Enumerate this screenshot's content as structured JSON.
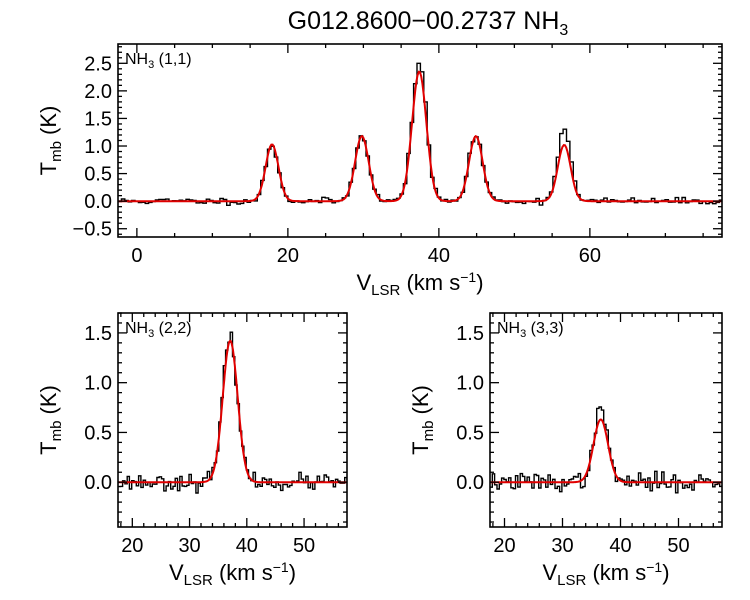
{
  "figure_title": {
    "main": "G012.8600−00.2737 NH",
    "sub": "3"
  },
  "colors": {
    "observed": "#000000",
    "fit": "#e00000"
  },
  "chart_data": [
    {
      "id": "top",
      "type": "line",
      "label": {
        "main": "NH",
        "sub": "3",
        "tail": " (1,1)"
      },
      "ylabel": {
        "main": "T",
        "sub": "mb",
        "tail": " (K)"
      },
      "xlabel": {
        "main": "V",
        "sub": "LSR",
        "tail": " (km s",
        "sup": "−1",
        "end": ")"
      },
      "xlim": [
        -2.5,
        77.5
      ],
      "ylim": [
        -0.65,
        2.85
      ],
      "xticks": [
        0,
        20,
        40,
        60
      ],
      "xtick_labels": [
        "0",
        "20",
        "40",
        "60"
      ],
      "yticks": [
        -0.5,
        0,
        0.5,
        1,
        1.5,
        2,
        2.5
      ],
      "ytick_labels": [
        "−0.5",
        "0.0",
        "0.5",
        "1.0",
        "1.5",
        "2.0",
        "2.5"
      ],
      "xminor": 5,
      "yminor": 0.1,
      "series": [
        {
          "name": "observed",
          "style": "step",
          "x_start": -2.5,
          "x_step": 0.45,
          "noise": 0.03,
          "seed": 11,
          "peaks": [
            {
              "x": 17.9,
              "amp": 1.02,
              "sigma": 0.85
            },
            {
              "x": 29.8,
              "amp": 1.22,
              "sigma": 0.9
            },
            {
              "x": 37.4,
              "amp": 2.52,
              "sigma": 0.95
            },
            {
              "x": 44.9,
              "amp": 1.2,
              "sigma": 0.9
            },
            {
              "x": 56.6,
              "amp": 1.35,
              "sigma": 0.85
            }
          ]
        },
        {
          "name": "fit",
          "style": "line",
          "peaks": [
            {
              "x": 17.9,
              "amp": 1.03,
              "sigma": 0.85
            },
            {
              "x": 29.8,
              "amp": 1.18,
              "sigma": 0.9
            },
            {
              "x": 37.4,
              "amp": 2.35,
              "sigma": 0.95
            },
            {
              "x": 44.9,
              "amp": 1.18,
              "sigma": 0.9
            },
            {
              "x": 56.6,
              "amp": 1.02,
              "sigma": 0.85
            }
          ]
        }
      ]
    },
    {
      "id": "bottom-left",
      "type": "line",
      "label": {
        "main": "NH",
        "sub": "3",
        "tail": " (2,2)"
      },
      "ylabel": {
        "main": "T",
        "sub": "mb",
        "tail": " (K)"
      },
      "xlabel": {
        "main": "V",
        "sub": "LSR",
        "tail": " (km s",
        "sup": "−1",
        "end": ")"
      },
      "xlim": [
        17.5,
        57.5
      ],
      "ylim": [
        -0.45,
        1.7
      ],
      "xticks": [
        20,
        30,
        40,
        50
      ],
      "xtick_labels": [
        "20",
        "30",
        "40",
        "50"
      ],
      "yticks": [
        0,
        0.5,
        1,
        1.5
      ],
      "ytick_labels": [
        "0.0",
        "0.5",
        "1.0",
        "1.5"
      ],
      "xminor": 2,
      "yminor": 0.1,
      "series": [
        {
          "name": "observed",
          "style": "step",
          "x_start": 17.5,
          "x_step": 0.4,
          "noise": 0.04,
          "seed": 23,
          "peaks": [
            {
              "x": 37.1,
              "amp": 1.45,
              "sigma": 1.3
            }
          ]
        },
        {
          "name": "fit",
          "style": "line",
          "peaks": [
            {
              "x": 37.1,
              "amp": 1.42,
              "sigma": 1.3
            }
          ]
        }
      ]
    },
    {
      "id": "bottom-right",
      "type": "line",
      "label": {
        "main": "NH",
        "sub": "3",
        "tail": " (3,3)"
      },
      "ylabel": {
        "main": "T",
        "sub": "mb",
        "tail": " (K)"
      },
      "xlabel": {
        "main": "V",
        "sub": "LSR",
        "tail": " (km s",
        "sup": "−1",
        "end": ")"
      },
      "xlim": [
        17.5,
        57.5
      ],
      "ylim": [
        -0.45,
        1.7
      ],
      "xticks": [
        20,
        30,
        40,
        50
      ],
      "xtick_labels": [
        "20",
        "30",
        "40",
        "50"
      ],
      "yticks": [
        0,
        0.5,
        1,
        1.5
      ],
      "ytick_labels": [
        "0.0",
        "0.5",
        "1.0",
        "1.5"
      ],
      "xminor": 2,
      "yminor": 0.1,
      "series": [
        {
          "name": "observed",
          "style": "step",
          "x_start": 17.5,
          "x_step": 0.4,
          "noise": 0.045,
          "seed": 37,
          "peaks": [
            {
              "x": 36.6,
              "amp": 0.7,
              "sigma": 1.25
            }
          ]
        },
        {
          "name": "fit",
          "style": "line",
          "peaks": [
            {
              "x": 36.6,
              "amp": 0.63,
              "sigma": 1.25
            }
          ]
        }
      ]
    }
  ]
}
